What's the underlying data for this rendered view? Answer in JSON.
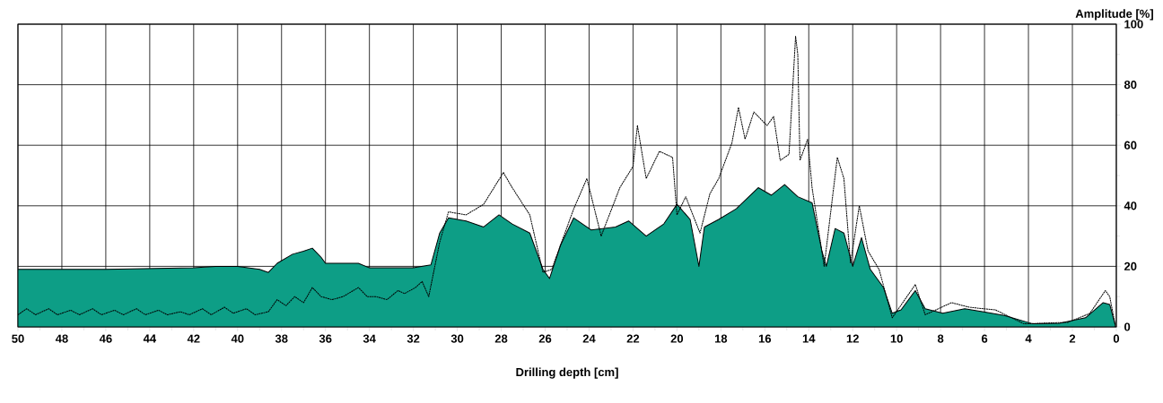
{
  "chart_data": {
    "type": "area",
    "xlabel": "Drilling depth [cm]",
    "ylabel": "Amplitude [%]",
    "xlim": [
      50,
      0
    ],
    "xticks": [
      50,
      48,
      46,
      44,
      42,
      40,
      38,
      36,
      34,
      32,
      30,
      28,
      26,
      24,
      22,
      20,
      18,
      16,
      14,
      12,
      10,
      8,
      6,
      4,
      2,
      0
    ],
    "ylim": [
      0,
      100
    ],
    "yticks": [
      0,
      20,
      40,
      60,
      80,
      100
    ],
    "grid": true,
    "series": [
      {
        "color": "#0d9e86",
        "x": [
          50,
          46,
          42,
          41,
          40,
          39,
          38.6,
          38.2,
          37.5,
          37,
          36.6,
          36.2,
          36,
          35.3,
          34.5,
          34,
          33,
          32,
          31.2,
          30.8,
          30.4,
          29.6,
          28.8,
          28.1,
          27.5,
          26.7,
          26.1,
          25.8,
          25.3,
          24.7,
          23.9,
          22.8,
          22.2,
          21.4,
          20.6,
          20.0,
          19.4,
          19.0,
          18.75,
          18.1,
          17.3,
          16.3,
          15.7,
          15.1,
          14.5,
          13.85,
          13.4,
          13.2,
          12.8,
          12.4,
          12.0,
          11.6,
          11.2,
          10.6,
          10.2,
          9.8,
          9.15,
          8.7,
          7.9,
          6.9,
          6.1,
          5.1,
          3.8,
          2.6,
          1.4,
          0.6,
          0.3,
          0.05
        ],
        "values": [
          19,
          19,
          19.5,
          20,
          20,
          19,
          18,
          21,
          24,
          25,
          26,
          23,
          21,
          21,
          21,
          19.5,
          19.5,
          19.5,
          20.5,
          31,
          36,
          35,
          33,
          37,
          34,
          31,
          19,
          16,
          27,
          36,
          32,
          33,
          35,
          30,
          34,
          40.5,
          35.5,
          20,
          33,
          35.5,
          39,
          46,
          43.5,
          47,
          43,
          41,
          25,
          20,
          32.5,
          31,
          20,
          29.5,
          19,
          13,
          4.5,
          5.6,
          12,
          6,
          4.5,
          6,
          5,
          3.8,
          1,
          1.2,
          3,
          8,
          7.4,
          0.6
        ]
      },
      {
        "type": "line",
        "color": "#000000",
        "line_style": "dotted",
        "x": [
          50,
          49.6,
          49.2,
          48.6,
          48.2,
          47.6,
          47.2,
          46.6,
          46.2,
          45.6,
          45.2,
          44.6,
          44.2,
          43.6,
          43.2,
          42.6,
          42.2,
          41.6,
          41.2,
          40.6,
          40.2,
          39.6,
          39.2,
          38.6,
          38.2,
          37.8,
          37.4,
          37,
          36.6,
          36.2,
          35.7,
          35.2,
          34.5,
          34.1,
          33.7,
          33.2,
          32.7,
          32.4,
          31.9,
          31.6,
          31.3,
          30.8,
          30.4,
          29.6,
          28.8,
          27.9,
          27.5,
          26.7,
          26.1,
          25.7,
          24.7,
          24.1,
          23.45,
          22.6,
          22.0,
          21.8,
          21.4,
          20.8,
          20.2,
          20.0,
          19.6,
          18.95,
          18.5,
          18.1,
          17.5,
          17.2,
          16.9,
          16.5,
          15.9,
          15.6,
          15.3,
          14.9,
          14.6,
          14.5,
          14.4,
          14.05,
          13.85,
          13.3,
          12.7,
          12.4,
          12.1,
          11.7,
          11.3,
          10.8,
          10.2,
          9.15,
          8.7,
          7.5,
          6.7,
          5.5,
          4.2,
          2.2,
          1.2,
          0.5,
          0.3,
          0.05
        ],
        "values": [
          4,
          6,
          4,
          6,
          4,
          5.5,
          4,
          6,
          4,
          5.5,
          4,
          6,
          4,
          5.5,
          4,
          5,
          4,
          6,
          4,
          6.5,
          4.5,
          6,
          4,
          5,
          9,
          7,
          10,
          8,
          13,
          10,
          9,
          10,
          13,
          10,
          10,
          9,
          12,
          11,
          13,
          15,
          10,
          28,
          38,
          37,
          40.5,
          51,
          46,
          37,
          18,
          19,
          39,
          49,
          30,
          46,
          53,
          66.5,
          49,
          58,
          56,
          37,
          43,
          31,
          44,
          49,
          60.7,
          72.5,
          62,
          71,
          66.5,
          69.5,
          55,
          57,
          96,
          90,
          55,
          62,
          46,
          20,
          56,
          49,
          21,
          40,
          25,
          19,
          3,
          14,
          4,
          8,
          6.5,
          5.6,
          1,
          1.5,
          4.5,
          12,
          10,
          0.6
        ]
      }
    ]
  }
}
